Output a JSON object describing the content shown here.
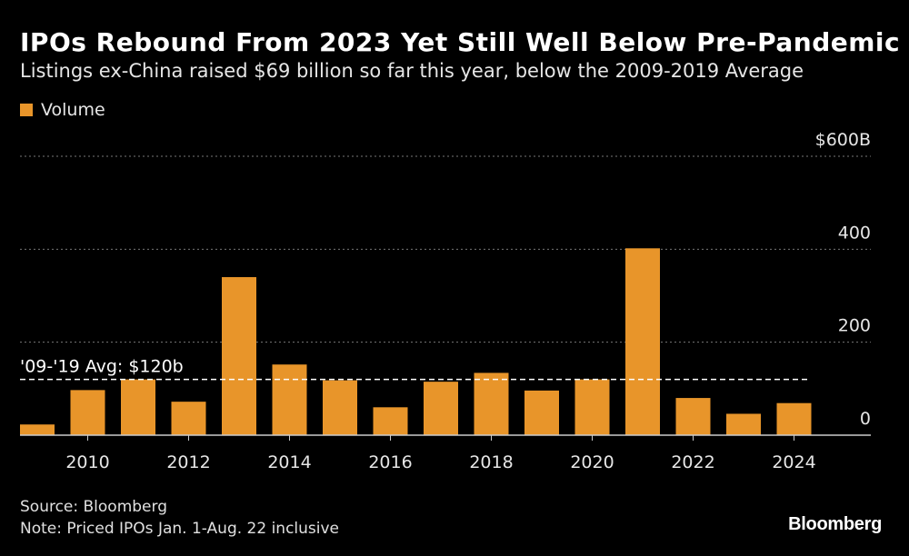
{
  "header": {
    "title": "IPOs Rebound From 2023 Yet Still Well Below Pre-Pandemic",
    "subtitle": "Listings ex-China raised $69 billion so far this year, below the 2009-2019 Average"
  },
  "colors": {
    "bar": "#e8952a",
    "background": "#000000",
    "grid": "#777777",
    "text": "#e6e6e6"
  },
  "footer": {
    "source": "Source: Bloomberg",
    "note": "Note: Priced IPOs Jan. 1-Aug. 22 inclusive",
    "logo": "Bloomberg"
  },
  "chart_data": {
    "type": "bar",
    "title": "IPOs Rebound From 2023 Yet Still Well Below Pre-Pandemic",
    "subtitle": "Listings ex-China raised $69 billion so far this year, below the 2009-2019 Average",
    "legend": [
      "Volume"
    ],
    "legend_position": "top-left",
    "x": [
      2009,
      2010,
      2011,
      2012,
      2013,
      2014,
      2015,
      2016,
      2017,
      2018,
      2019,
      2020,
      2021,
      2022,
      2023,
      2024
    ],
    "series": [
      {
        "name": "Volume",
        "values": [
          23,
          97,
          120,
          72,
          340,
          152,
          118,
          60,
          115,
          134,
          96,
          120,
          402,
          80,
          46,
          69
        ]
      }
    ],
    "x_tick_labels": [
      "2010",
      "2012",
      "2014",
      "2016",
      "2018",
      "2020",
      "2022",
      "2024"
    ],
    "y_ticks": [
      0,
      200,
      400,
      600
    ],
    "y_tick_labels": [
      "0",
      "200",
      "400",
      "$600B"
    ],
    "ylim": [
      0,
      600
    ],
    "grid": true,
    "xlabel": "",
    "ylabel": "",
    "reference_line": {
      "value": 120,
      "label": "'09-'19 Avg: $120b",
      "style": "dashed"
    }
  }
}
